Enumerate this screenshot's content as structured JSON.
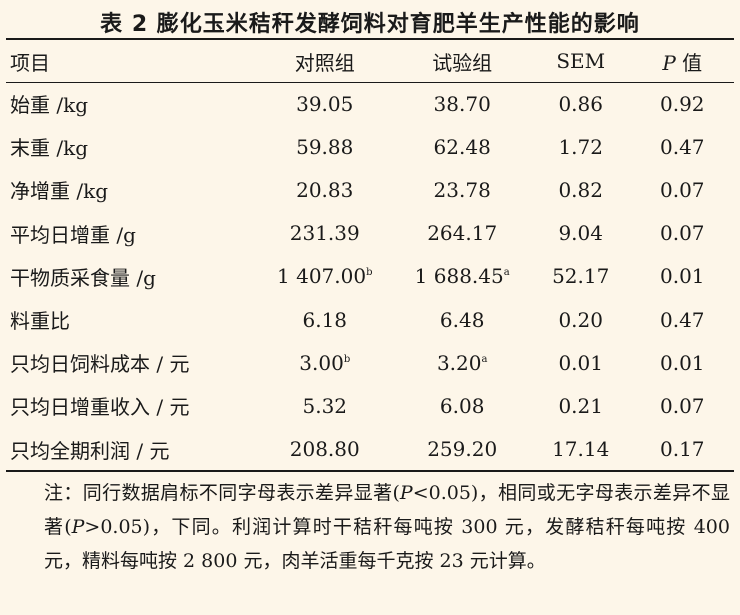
{
  "title": "表 2   膨化玉米秸秆发酵饲料对育肥羊生产性能的影响",
  "headers": {
    "item": "项目",
    "control": "对照组",
    "experiment": "试验组",
    "sem": "SEM",
    "p_italic": "P",
    "p_suffix": " 值"
  },
  "rows": [
    {
      "item": "始重 /kg",
      "control": "39.05",
      "control_sup": "",
      "experiment": "38.70",
      "experiment_sup": "",
      "sem": "0.86",
      "p": "0.92"
    },
    {
      "item": "末重 /kg",
      "control": "59.88",
      "control_sup": "",
      "experiment": "62.48",
      "experiment_sup": "",
      "sem": "1.72",
      "p": "0.47"
    },
    {
      "item": "净增重 /kg",
      "control": "20.83",
      "control_sup": "",
      "experiment": "23.78",
      "experiment_sup": "",
      "sem": "0.82",
      "p": "0.07"
    },
    {
      "item": "平均日增重 /g",
      "control": "231.39",
      "control_sup": "",
      "experiment": "264.17",
      "experiment_sup": "",
      "sem": "9.04",
      "p": "0.07"
    },
    {
      "item": "干物质采食量 /g",
      "control": "1 407.00",
      "control_sup": "b",
      "experiment": "1 688.45",
      "experiment_sup": "a",
      "sem": "52.17",
      "p": "0.01"
    },
    {
      "item": "料重比",
      "control": "6.18",
      "control_sup": "",
      "experiment": "6.48",
      "experiment_sup": "",
      "sem": "0.20",
      "p": "0.47"
    },
    {
      "item": "只均日饲料成本 / 元",
      "control": "3.00",
      "control_sup": "b",
      "experiment": "3.20",
      "experiment_sup": "a",
      "sem": "0.01",
      "p": "0.01"
    },
    {
      "item": "只均日增重收入 / 元",
      "control": "5.32",
      "control_sup": "",
      "experiment": "6.08",
      "experiment_sup": "",
      "sem": "0.21",
      "p": "0.07"
    },
    {
      "item": "只均全期利润 / 元",
      "control": "208.80",
      "control_sup": "",
      "experiment": "259.20",
      "experiment_sup": "",
      "sem": "17.14",
      "p": "0.17"
    }
  ],
  "note": {
    "part1": "注：同行数据肩标不同字母表示差异显著(",
    "p1": "P",
    "part2": "<0.05)，相同或无字母表示差异不显著(",
    "p2": "P",
    "part3": ">0.05)，下同。利润计算时干秸秆每吨按 300 元，发酵秸秆每吨按 400 元，精料每吨按 2 800 元，肉羊活重每千克按 23 元计算。"
  }
}
